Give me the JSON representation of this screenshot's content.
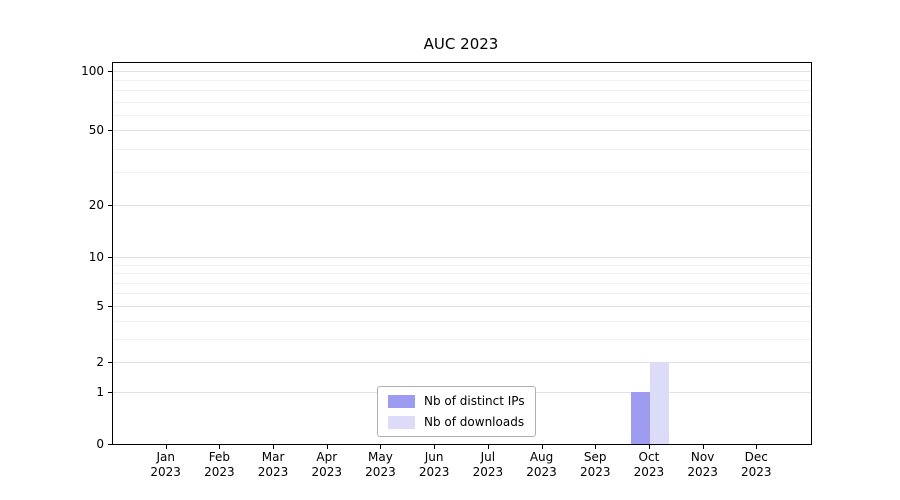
{
  "chart_data": {
    "type": "bar",
    "title": "AUC 2023",
    "months": [
      "Jan",
      "Feb",
      "Mar",
      "Apr",
      "May",
      "Jun",
      "Jul",
      "Aug",
      "Sep",
      "Oct",
      "Nov",
      "Dec"
    ],
    "year": "2023",
    "series": [
      {
        "name": "Nb of distinct IPs",
        "color": "#9d9cf0",
        "values": [
          0,
          0,
          0,
          0,
          0,
          0,
          0,
          0,
          0,
          1,
          0,
          0
        ]
      },
      {
        "name": "Nb of downloads",
        "color": "#dcdcf8",
        "values": [
          0,
          0,
          0,
          0,
          0,
          0,
          0,
          0,
          0,
          2,
          0,
          0
        ]
      }
    ],
    "yticks": [
      0,
      1,
      2,
      5,
      10,
      20,
      50,
      100
    ],
    "ylim": [
      0,
      100
    ],
    "scale": "symlog",
    "grid": "horizontal",
    "legend_position": "bottom-center"
  }
}
